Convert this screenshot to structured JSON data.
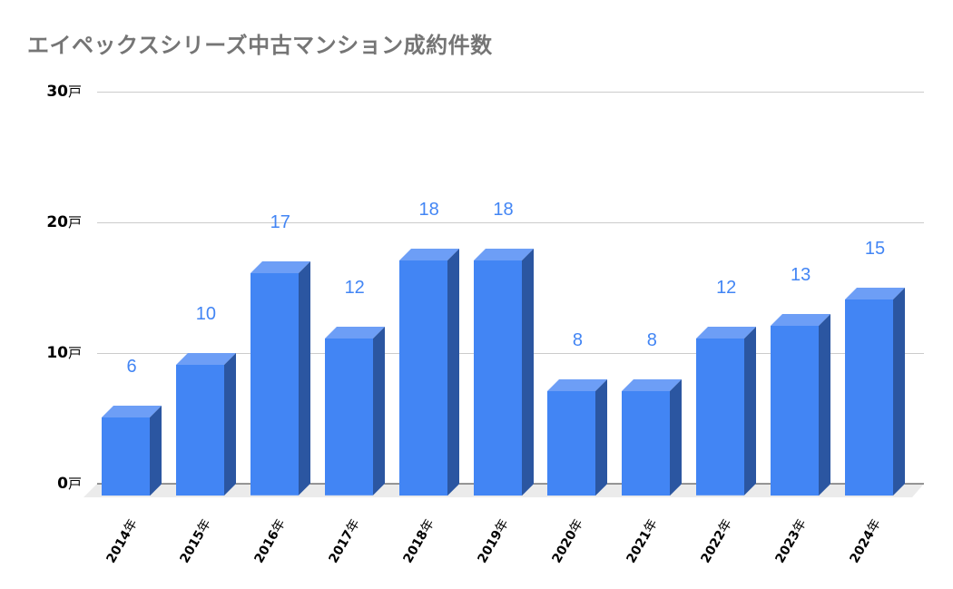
{
  "chart_data": {
    "type": "bar",
    "style": "3d-column",
    "title": "エイペックスシリーズ中古マンション成約件数",
    "xlabel": "",
    "ylabel": "",
    "categories": [
      "2014年",
      "2015年",
      "2016年",
      "2017年",
      "2018年",
      "2019年",
      "2020年",
      "2021年",
      "2022年",
      "2023年",
      "2024年"
    ],
    "values": [
      6,
      10,
      17,
      12,
      18,
      18,
      8,
      8,
      12,
      13,
      15
    ],
    "data_labels": [
      "6",
      "10",
      "17",
      "12",
      "18",
      "18",
      "8",
      "8",
      "12",
      "13",
      "15"
    ],
    "ylim": [
      0,
      30
    ],
    "yticks": [
      {
        "value": 30,
        "num": "30",
        "unit": "戸"
      },
      {
        "value": 20,
        "num": "20",
        "unit": "戸"
      },
      {
        "value": 10,
        "num": "10",
        "unit": "戸"
      },
      {
        "value": 0,
        "num": "0",
        "unit": "戸"
      }
    ],
    "grid": true,
    "legend": "none",
    "colors": {
      "bar_front": "#4285f4",
      "bar_top": "#6d9ef6",
      "bar_side": "#2b56a1",
      "data_label": "#4285f4",
      "title": "#757575",
      "grid": "#cccccc"
    }
  },
  "xlabels": [
    {
      "num": "2014",
      "unit": "年"
    },
    {
      "num": "2015",
      "unit": "年"
    },
    {
      "num": "2016",
      "unit": "年"
    },
    {
      "num": "2017",
      "unit": "年"
    },
    {
      "num": "2018",
      "unit": "年"
    },
    {
      "num": "2019",
      "unit": "年"
    },
    {
      "num": "2020",
      "unit": "年"
    },
    {
      "num": "2021",
      "unit": "年"
    },
    {
      "num": "2022",
      "unit": "年"
    },
    {
      "num": "2023",
      "unit": "年"
    },
    {
      "num": "2024",
      "unit": "年"
    }
  ]
}
